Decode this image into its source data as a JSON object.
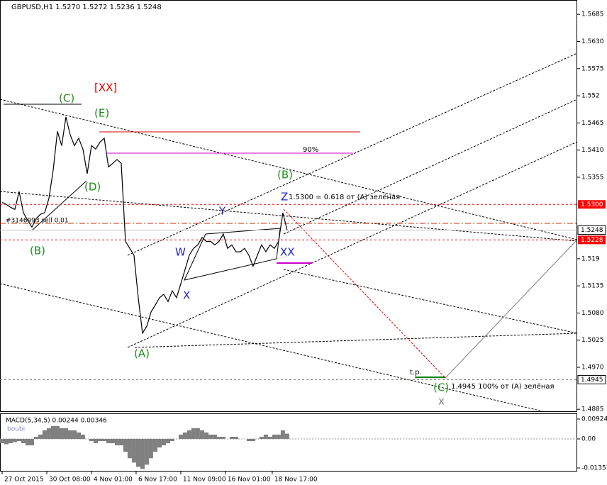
{
  "chart_data": [
    {
      "type": "line",
      "title": "GBPUSD,H1 1.5270 1.5272 1.5236 1.5248",
      "color": "#000000",
      "values": [
        1.5304,
        1.53,
        1.5294,
        1.529,
        1.5326,
        1.5283,
        1.5268,
        1.5254,
        1.5271,
        1.528,
        1.5283,
        1.5312,
        1.5369,
        1.5448,
        1.5419,
        1.5477,
        1.5441,
        1.5419,
        1.5434,
        1.5412,
        1.5362,
        1.5419,
        1.5412,
        1.5426,
        1.5434,
        1.5376,
        1.5383,
        1.5391,
        1.5383,
        1.5225,
        1.5211,
        1.5197,
        1.5111,
        1.5039,
        1.5053,
        1.5082,
        1.5096,
        1.5111,
        1.5118,
        1.5103,
        1.5125,
        1.5111,
        1.5139,
        1.5168,
        1.5197,
        1.5211,
        1.5218,
        1.5233,
        1.5225,
        1.5225,
        1.5218,
        1.5225,
        1.524,
        1.5211,
        1.5218,
        1.5204,
        1.5204,
        1.5211,
        1.5197,
        1.5175,
        1.5197,
        1.5218,
        1.5204,
        1.5218,
        1.5211,
        1.5225,
        1.5283,
        1.5248
      ],
      "xlim": [
        -0.5,
        135.2
      ],
      "xticks": [
        {
          "value": 0,
          "label": "27 Oct 2015"
        },
        {
          "value": 10.5,
          "label": "30 Oct 08:00"
        },
        {
          "value": 21,
          "label": "4 Nov 01:00"
        },
        {
          "value": 31.5,
          "label": "6 Nov 17:00"
        },
        {
          "value": 42,
          "label": "11 Nov 09:00"
        },
        {
          "value": 52.5,
          "label": "16 Nov 01:00"
        },
        {
          "value": 63.5,
          "label": "18 Nov 17:00"
        }
      ],
      "ylim": [
        1.4881,
        1.5714
      ],
      "yticks": [
        1.5685,
        {
          "value": 1.563,
          "label": "1.5630"
        },
        1.5575,
        1.552,
        {
          "value": 1.5465,
          "label": "1.5465"
        },
        {
          "value": 1.541,
          "label": "1.5410"
        },
        1.5355,
        1.519,
        {
          "value": 1.5135,
          "label": "1.5135"
        },
        {
          "value": 1.508,
          "label": "1.5080"
        },
        1.5025,
        {
          "value": 1.497,
          "label": "1.4970"
        },
        1.4885
      ],
      "price_lines": [
        {
          "value": 1.53,
          "label": "1.5300",
          "color": "#ff0000"
        },
        {
          "value": 1.5248,
          "label": "1.5248",
          "color": "#c0c0c0"
        },
        {
          "value": 1.5228,
          "label": "1.5228",
          "color": "#ff0000"
        },
        {
          "value": 1.4945,
          "label": "1.4945",
          "color": "#808080"
        }
      ],
      "annotations": [
        "[XX]",
        "(C)",
        "(E)",
        "(D)",
        "(B)",
        "(A)",
        "W",
        "X",
        "Y",
        "Z",
        "XX",
        "(B)",
        "(C)",
        "x",
        "90%",
        "1.5300 = 0.618  от (A) зелёная",
        "1.4945 100% от (A) зелёная",
        "t.p.",
        "#3146993 sell 0.01"
      ]
    },
    {
      "type": "bar",
      "title": "MACD(5,34,5) 0.00244 0.00346",
      "subtitle": "boubi",
      "color": "#808080",
      "values": [
        -0.002,
        -0.0025,
        -0.002,
        -0.0015,
        -0.001,
        -0.002,
        -0.003,
        -0.003,
        0.001,
        0.002,
        0.004,
        0.005,
        0.006,
        0.006,
        0.005,
        0.005,
        0.004,
        0.004,
        0.003,
        0.002,
        0.0,
        -0.001,
        -0.002,
        -0.001,
        -0.001,
        -0.002,
        -0.002,
        -0.003,
        -0.003,
        -0.006,
        -0.009,
        -0.011,
        -0.013,
        -0.014,
        -0.012,
        -0.009,
        -0.006,
        -0.004,
        -0.003,
        -0.002,
        -0.001,
        0.0,
        0.002,
        0.003,
        0.004,
        0.005,
        0.005,
        0.004,
        0.003,
        0.002,
        0.002,
        0.001,
        0.001,
        0.0,
        0.001,
        0.001,
        0.0,
        0.0,
        -0.001,
        -0.001,
        0.0,
        0.001,
        0.002,
        0.001,
        0.002,
        0.002,
        0.004,
        0.00244
      ],
      "ylim": [
        -0.01485,
        0.01188
      ],
      "yticks": [
        0.00924,
        {
          "value": 0,
          "label": "0.00"
        },
        -0.01353
      ]
    }
  ]
}
